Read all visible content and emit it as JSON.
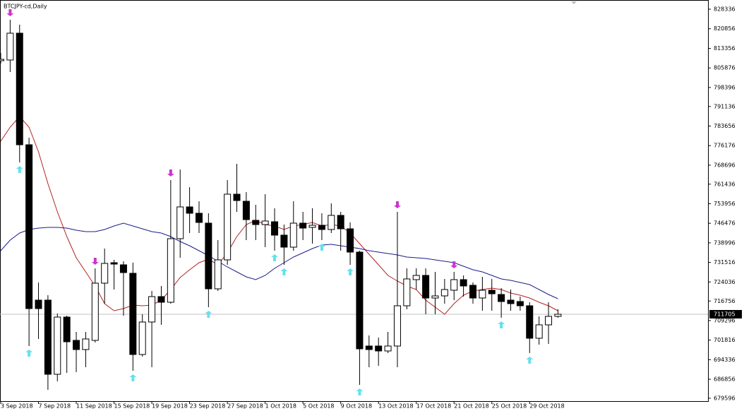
{
  "chart_data": {
    "type": "candlestick",
    "title": "BTCJPY-cd,Daily",
    "categories": [
      "3 Sep 2018",
      null,
      null,
      null,
      "7 Sep 2018",
      null,
      null,
      null,
      "11 Sep 2018",
      null,
      null,
      null,
      "15 Sep 2018",
      null,
      null,
      null,
      "19 Sep 2018",
      null,
      null,
      null,
      "23 Sep 2018",
      null,
      null,
      null,
      "27 Sep 2018",
      null,
      null,
      null,
      "1 Oct 2018",
      null,
      null,
      null,
      "5 Oct 2018",
      null,
      null,
      null,
      "9 Oct 2018",
      null,
      null,
      null,
      "13 Oct 2018",
      null,
      null,
      null,
      "17 Oct 2018",
      null,
      null,
      null,
      "21 Oct 2018",
      null,
      null,
      null,
      "25 Oct 2018",
      null,
      null,
      null,
      "29 Oct 2018",
      null,
      null,
      null
    ],
    "open": [
      808630,
      808900,
      819160,
      776500,
      717100,
      717100,
      688750,
      710620,
      701710,
      698200,
      701710,
      723580,
      731410,
      730600,
      727360,
      696310,
      708730,
      718450,
      716290,
      740590,
      752740,
      750310,
      746530,
      721420,
      732490,
      757600,
      754900,
      747610,
      745990,
      747070,
      741940,
      737350,
      746530,
      744910,
      745720,
      744100,
      749500,
      744370,
      735460,
      699550,
      699550,
      697660,
      699550,
      714940,
      724930,
      726550,
      717910,
      718720,
      720880,
      724930,
      722770,
      717910,
      720880,
      719260,
      717100,
      716560,
      714940,
      702520,
      707650,
      710890
    ],
    "high": [
      811600,
      824290,
      822400,
      779200,
      723850,
      718990,
      711970,
      711160,
      704950,
      704950,
      729250,
      736810,
      732490,
      731950,
      731410,
      711700,
      720610,
      722500,
      763000,
      767050,
      760300,
      754900,
      750310,
      740050,
      763000,
      769210,
      758410,
      753550,
      757600,
      752200,
      745990,
      754900,
      750850,
      752200,
      750310,
      754090,
      750850,
      746800,
      736000,
      703600,
      702790,
      704950,
      750850,
      729250,
      729250,
      729250,
      727900,
      725200,
      727900,
      726550,
      723850,
      726010,
      725200,
      721690,
      721150,
      718450,
      716290,
      710890,
      716290,
      713590
    ],
    "low": [
      807550,
      804310,
      769750,
      699550,
      702250,
      682810,
      686050,
      689290,
      689560,
      691450,
      700900,
      715750,
      721150,
      711160,
      690100,
      695500,
      691450,
      707650,
      715750,
      733300,
      742750,
      742750,
      714400,
      720610,
      730600,
      750850,
      740050,
      740050,
      737350,
      736000,
      730600,
      736000,
      740050,
      738700,
      740050,
      742750,
      736000,
      730600,
      684700,
      691450,
      691990,
      696850,
      691450,
      713590,
      721150,
      711700,
      711700,
      715750,
      717100,
      718450,
      715750,
      713050,
      713050,
      710350,
      713050,
      713050,
      696850,
      700090,
      700360,
      710350
    ],
    "close": [
      809170,
      819160,
      776500,
      713860,
      713860,
      688750,
      710620,
      701170,
      698200,
      702250,
      723580,
      731140,
      730870,
      727630,
      696310,
      708730,
      718450,
      716290,
      740590,
      752740,
      750310,
      746800,
      721420,
      732490,
      757600,
      755170,
      747880,
      745990,
      747340,
      741940,
      737350,
      746530,
      744640,
      745720,
      744100,
      749500,
      744370,
      735460,
      698470,
      698200,
      697660,
      699550,
      714940,
      725200,
      726550,
      717910,
      718720,
      721150,
      724930,
      722500,
      717910,
      720880,
      719530,
      716560,
      715750,
      714940,
      702520,
      707650,
      710890,
      711705
    ],
    "up_color": "#ffffff",
    "down_color": "#000000",
    "moving_averages": [
      {
        "color": "#b22222",
        "values": [
          777850,
          783250,
          787300,
          783250,
          773800,
          761650,
          750850,
          741400,
          733300,
          727900,
          722500,
          715750,
          713050,
          713860,
          715210,
          714940,
          715210,
          717100,
          721150,
          725740,
          728710,
          731410,
          732760,
          730600,
          735190,
          741400,
          745990,
          747610,
          745990,
          745450,
          744100,
          745450,
          745990,
          746800,
          745450,
          745990,
          745450,
          742750,
          738700,
          734650,
          730600,
          726550,
          724390,
          722500,
          721150,
          717100,
          714400,
          711700,
          715750,
          718990,
          720610,
          721150,
          721690,
          721150,
          719800,
          718990,
          717910,
          716290,
          714940,
          713050
        ]
      },
      {
        "color": "#1c1c8c",
        "values": [
          735990,
          740050,
          742750,
          744100,
          744640,
          744910,
          744910,
          744640,
          743830,
          743290,
          743290,
          744100,
          745450,
          746530,
          745450,
          744370,
          743290,
          742750,
          741400,
          739510,
          737890,
          735990,
          734110,
          731950,
          729790,
          727900,
          726010,
          724930,
          726550,
          729250,
          731410,
          733570,
          735190,
          736810,
          738160,
          738430,
          737890,
          737350,
          736810,
          735990,
          735460,
          734920,
          734380,
          733570,
          733300,
          733030,
          732490,
          731950,
          731410,
          730060,
          728710,
          727900,
          726550,
          725200,
          724660,
          723850,
          723040,
          721150,
          719260,
          717640
        ]
      }
    ],
    "down_arrows": [
      1,
      10,
      18,
      42,
      48
    ],
    "down_arrow_color": "#cc33cc",
    "up_arrows": [
      2,
      3,
      14,
      22,
      29,
      30,
      34,
      37,
      38,
      53,
      56
    ],
    "up_arrow_color": "#66e0ee",
    "current_price": 711705,
    "ylim": [
      678486,
      831846
    ],
    "yticks": [
      828336,
      820856,
      813356,
      805876,
      798396,
      791136,
      783656,
      776176,
      768696,
      761436,
      753956,
      746476,
      738996,
      731516,
      724036,
      716756,
      709296,
      701816,
      694336,
      686856,
      679596
    ]
  }
}
